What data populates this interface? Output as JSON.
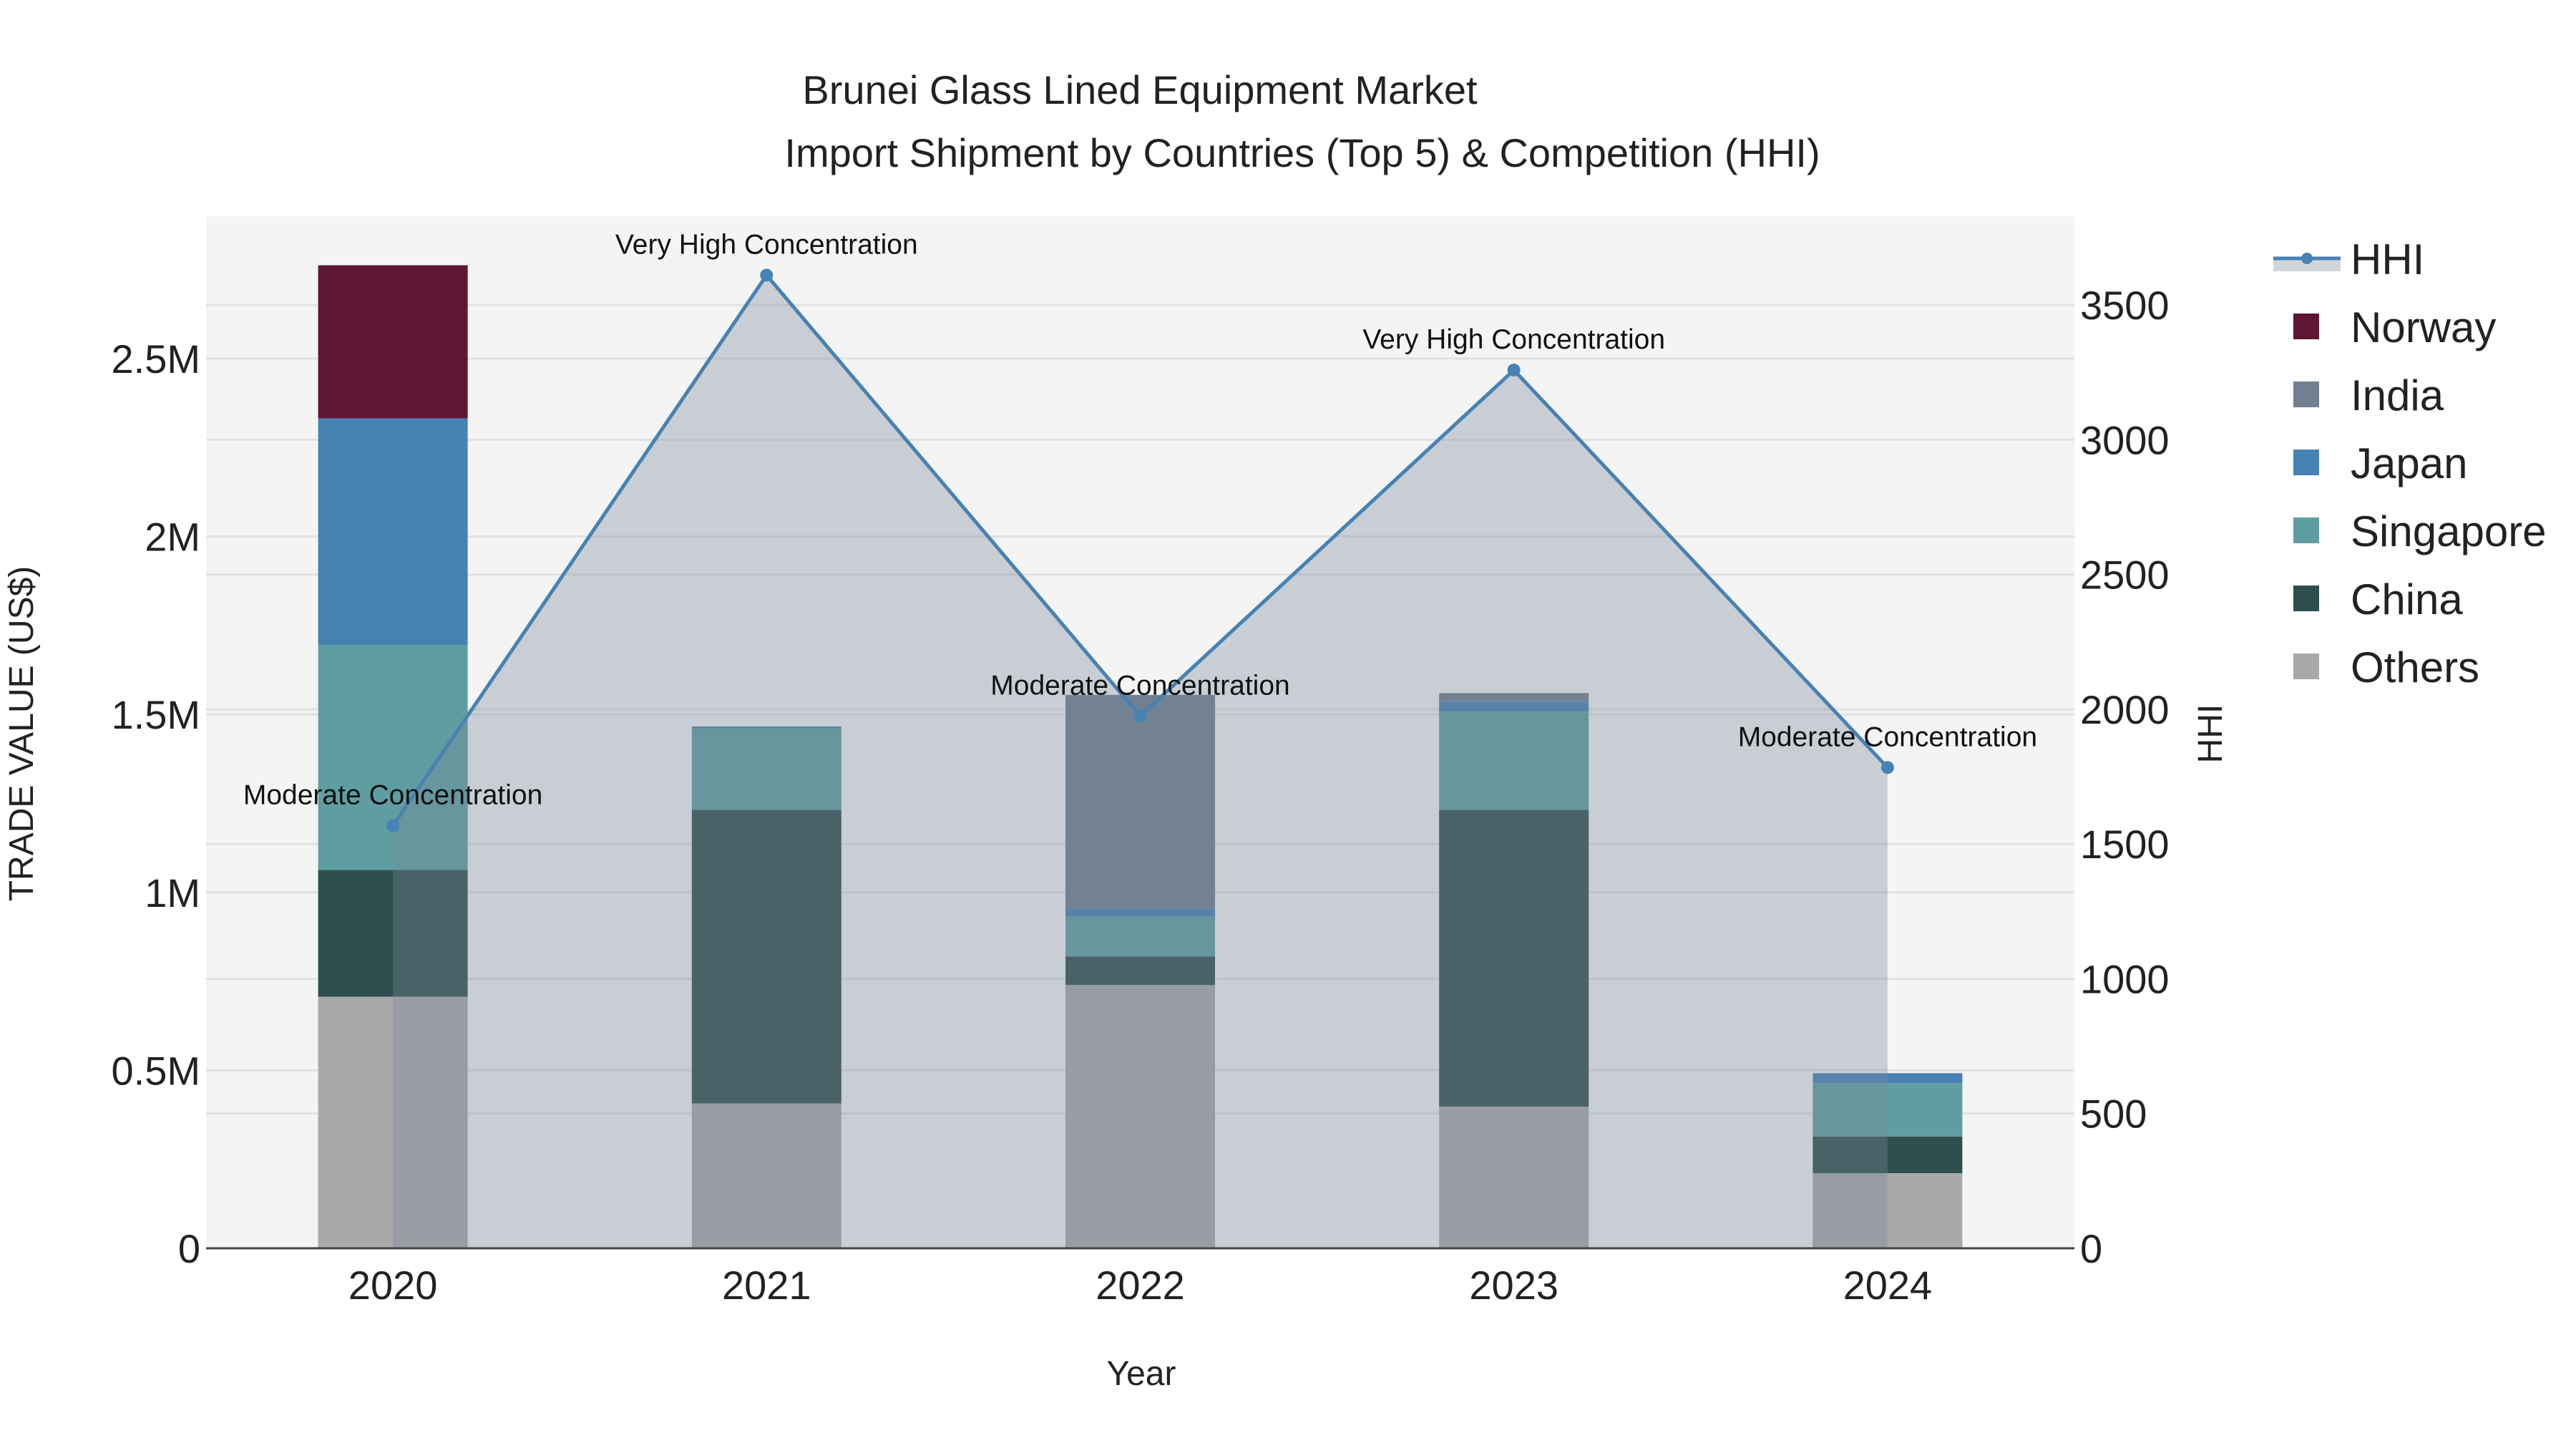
{
  "chart_data": {
    "type": "bar",
    "title": "Brunei Glass Lined Equipment Market",
    "subtitle": "Import Shipment by Countries (Top 5) & Competition (HHI)",
    "xlabel": "Year",
    "ylabel": "TRADE VALUE (US$)",
    "y2label": "HHI",
    "categories": [
      "2020",
      "2021",
      "2022",
      "2023",
      "2024"
    ],
    "ylim": [
      0,
      2900000
    ],
    "y2lim": [
      0,
      3830
    ],
    "yticks": [
      {
        "v": 0,
        "label": "0"
      },
      {
        "v": 500000,
        "label": "0.5M"
      },
      {
        "v": 1000000,
        "label": "1M"
      },
      {
        "v": 1500000,
        "label": "1.5M"
      },
      {
        "v": 2000000,
        "label": "2M"
      },
      {
        "v": 2500000,
        "label": "2.5M"
      }
    ],
    "y2ticks": [
      0,
      500,
      1000,
      1500,
      2000,
      2500,
      3000,
      3500
    ],
    "grid": true,
    "legend_position": "right",
    "series": [
      {
        "name": "Others",
        "color": "#a9a9a9",
        "values": [
          707000,
          407000,
          740000,
          398000,
          211000
        ]
      },
      {
        "name": "China",
        "color": "#2f4f4f",
        "values": [
          356000,
          825000,
          80000,
          834000,
          103000
        ]
      },
      {
        "name": "Singapore",
        "color": "#5f9ea0",
        "values": [
          632000,
          229000,
          112000,
          276000,
          150000
        ]
      },
      {
        "name": "Japan",
        "color": "#4682b4",
        "values": [
          637000,
          5000,
          23000,
          27000,
          28000
        ]
      },
      {
        "name": "India",
        "color": "#708090",
        "values": [
          0,
          0,
          600000,
          25000,
          0
        ]
      },
      {
        "name": "Norway",
        "color": "#601535",
        "values": [
          430000,
          0,
          0,
          0,
          0
        ]
      }
    ],
    "hhi": {
      "name": "HHI",
      "color": "#4682b4",
      "values": [
        1568,
        3611,
        1975,
        3259,
        1784
      ],
      "annotations": [
        "Moderate Concentration",
        "Very High Concentration",
        "Moderate Concentration",
        "Very High Concentration",
        "Moderate Concentration"
      ]
    },
    "legend_order": [
      "HHI",
      "Norway",
      "India",
      "Japan",
      "Singapore",
      "China",
      "Others"
    ]
  }
}
